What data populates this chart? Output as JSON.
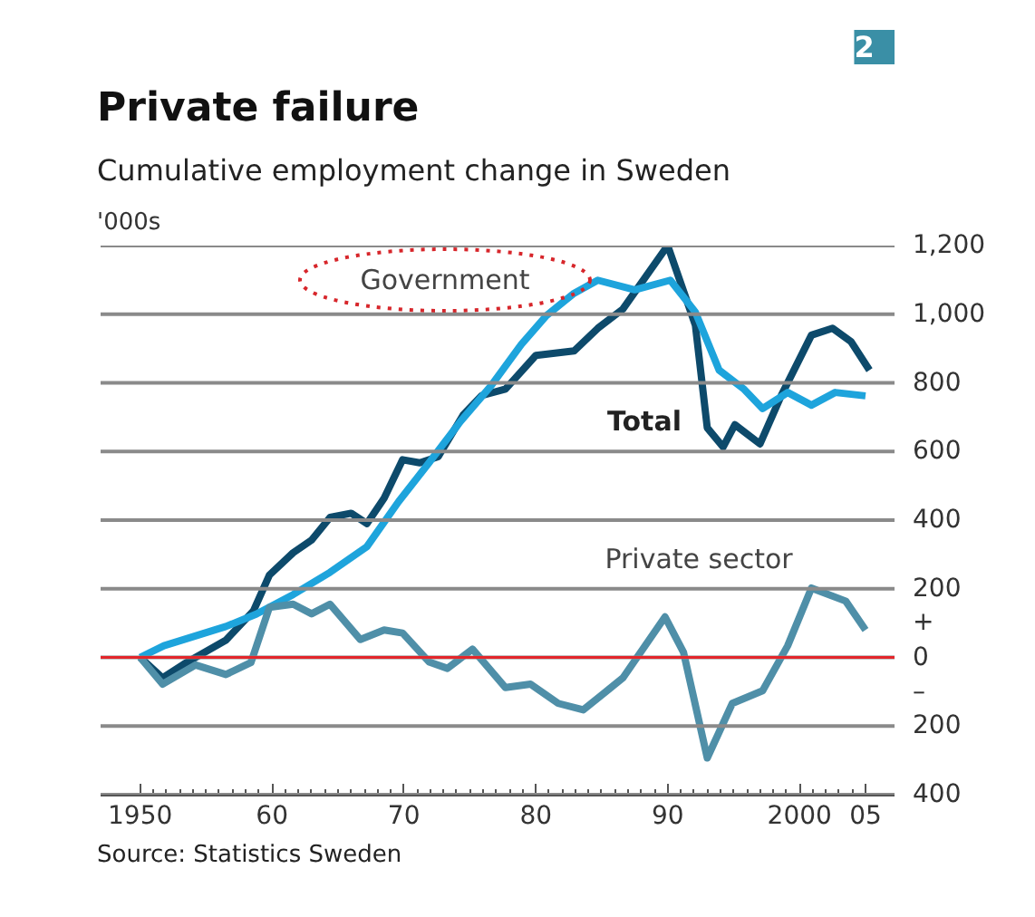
{
  "chart_data": {
    "type": "line",
    "title": "Private failure",
    "subtitle": "Cumulative employment change in Sweden",
    "ylabel": "'000s",
    "x": [
      1950,
      1951.7,
      1953.3,
      1956.5,
      1958.6,
      1959.8,
      1961.6,
      1963,
      1964.4,
      1966,
      1967.2,
      1968.5,
      1969.9,
      1971.2,
      1972.6,
      1974.5,
      1975.9,
      1977.7,
      1980,
      1982.9,
      1984.7,
      1986.6,
      1990,
      1992.1,
      1993,
      1994.2,
      1995.1,
      1997,
      1998.6,
      2000.9,
      2002.5,
      2003.9,
      2005.3
    ],
    "series": [
      {
        "color": "#0d4a6b",
        "values": [
          0,
          -60,
          -20,
          50,
          136,
          240,
          305,
          342,
          408,
          420,
          390,
          464,
          576,
          567,
          585,
          707,
          763,
          782,
          880,
          893,
          959,
          1015,
          1200,
          968,
          669,
          613,
          678,
          622,
          762,
          939,
          959,
          920,
          837
        ]
      },
      {
        "color": "#1ea4dc",
        "x": [
          1950,
          1951.8,
          1956.5,
          1958.8,
          1961.6,
          1964.4,
          1967.2,
          1969.6,
          1971.9,
          1974.3,
          1976.6,
          1978.9,
          1980.8,
          1982.9,
          1984.7,
          1987.5,
          1990.2,
          1992.1,
          1993.9,
          1995.8,
          1997.2,
          1999.1,
          2000.9,
          2002.7,
          2005
        ],
        "values": [
          0,
          34,
          90,
          126,
          183,
          248,
          323,
          454,
          567,
          688,
          791,
          912,
          996,
          1061,
          1099,
          1071,
          1099,
          1006,
          837,
          781,
          725,
          772,
          735,
          772,
          762
        ]
      },
      {
        "color": "#4f8fa8",
        "x": [
          1950,
          1951.7,
          1954.2,
          1956.5,
          1958.4,
          1959.8,
          1961.6,
          1963,
          1964.4,
          1966.7,
          1968.5,
          1969.9,
          1971.9,
          1973.3,
          1975.2,
          1977.7,
          1979.6,
          1981.7,
          1983.6,
          1986.6,
          1989.8,
          1991.2,
          1993,
          1994.9,
          1997.2,
          1999.1,
          2000.9,
          2003.5,
          2005
        ],
        "values": [
          0,
          -78,
          -22,
          -50,
          -15,
          146,
          155,
          127,
          155,
          52,
          80,
          71,
          -13,
          -32,
          24,
          -88,
          -78,
          -134,
          -153,
          -60,
          118,
          15,
          -293,
          -134,
          -97,
          34,
          202,
          164,
          80
        ]
      }
    ],
    "annotations": [
      "2",
      "Source: Statistics Sweden",
      "Government",
      "Total",
      "Private sector"
    ],
    "ref_lines": [
      {
        "axis": "y",
        "value": 0,
        "color": "#e3262b"
      }
    ],
    "xlim": [
      1947,
      2007.2
    ],
    "ylim": [
      -400,
      1200
    ],
    "xticks": [
      1950,
      {
        "value": 1951,
        "label": null
      },
      {
        "value": 1952,
        "label": null
      },
      {
        "value": 1953,
        "label": null
      },
      {
        "value": 1954,
        "label": null
      },
      {
        "value": 1955,
        "label": null
      },
      {
        "value": 1956,
        "label": null
      },
      {
        "value": 1957,
        "label": null
      },
      {
        "value": 1958,
        "label": null
      },
      {
        "value": 1959,
        "label": null
      },
      {
        "value": 1960,
        "label": "60"
      },
      {
        "value": 1961,
        "label": null
      },
      {
        "value": 1962,
        "label": null
      },
      {
        "value": 1963,
        "label": null
      },
      {
        "value": 1964,
        "label": null
      },
      {
        "value": 1965,
        "label": null
      },
      {
        "value": 1966,
        "label": null
      },
      {
        "value": 1967,
        "label": null
      },
      {
        "value": 1968,
        "label": null
      },
      {
        "value": 1969,
        "label": null
      },
      {
        "value": 1970,
        "label": "70"
      },
      {
        "value": 1971,
        "label": null
      },
      {
        "value": 1972,
        "label": null
      },
      {
        "value": 1973,
        "label": null
      },
      {
        "value": 1974,
        "label": null
      },
      {
        "value": 1975,
        "label": null
      },
      {
        "value": 1976,
        "label": null
      },
      {
        "value": 1977,
        "label": null
      },
      {
        "value": 1978,
        "label": null
      },
      {
        "value": 1979,
        "label": null
      },
      {
        "value": 1980,
        "label": "80"
      },
      {
        "value": 1981,
        "label": null
      },
      {
        "value": 1982,
        "label": null
      },
      {
        "value": 1983,
        "label": null
      },
      {
        "value": 1984,
        "label": null
      },
      {
        "value": 1985,
        "label": null
      },
      {
        "value": 1986,
        "label": null
      },
      {
        "value": 1987,
        "label": null
      },
      {
        "value": 1988,
        "label": null
      },
      {
        "value": 1989,
        "label": null
      },
      {
        "value": 1990,
        "label": "90"
      },
      {
        "value": 1991,
        "label": null
      },
      {
        "value": 1992,
        "label": null
      },
      {
        "value": 1993,
        "label": null
      },
      {
        "value": 1994,
        "label": null
      },
      {
        "value": 1995,
        "label": null
      },
      {
        "value": 1996,
        "label": null
      },
      {
        "value": 1997,
        "label": null
      },
      {
        "value": 1998,
        "label": null
      },
      {
        "value": 1999,
        "label": null
      },
      {
        "value": 2000,
        "label": "2000"
      },
      {
        "value": 2001,
        "label": null
      },
      {
        "value": 2002,
        "label": null
      },
      {
        "value": 2003,
        "label": null
      },
      {
        "value": 2004,
        "label": null
      },
      {
        "value": 2005,
        "label": "05"
      }
    ],
    "yticks": [
      {
        "value": -400,
        "label": "400"
      },
      {
        "value": -200,
        "label": "200"
      },
      {
        "value": 0,
        "label": "+\n0\n–"
      },
      200,
      400,
      600,
      800,
      {
        "value": 1000,
        "label": "1,000"
      },
      {
        "value": 1200,
        "label": "1,200"
      }
    ],
    "grid": "y",
    "marker": "none",
    "line_style": "solid"
  }
}
